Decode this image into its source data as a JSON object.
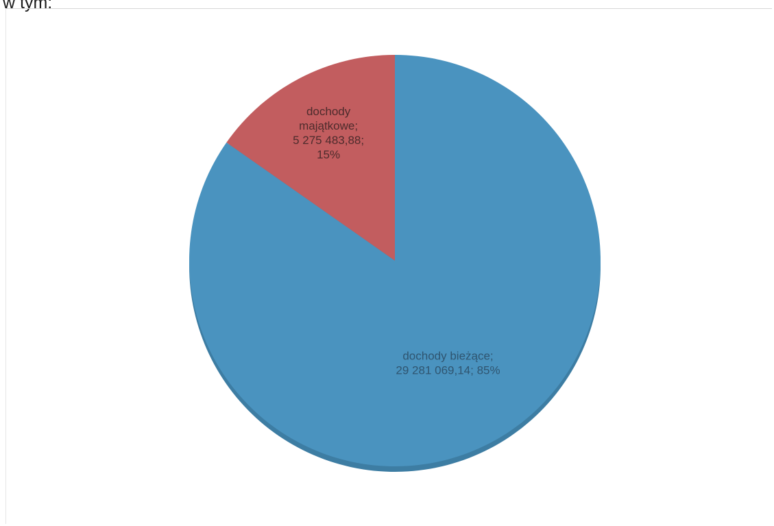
{
  "heading": "w tym:",
  "chart_data": {
    "type": "pie",
    "title": "",
    "slices": [
      {
        "key": "biezace",
        "lines": [
          "dochody bieżące;",
          "29 281 069,14; 85%"
        ],
        "value": 29281069.14,
        "percent": 85,
        "color": "#4a93bf",
        "side_color": "#3d7da3",
        "label_color": "#2f5570"
      },
      {
        "key": "majatkowe",
        "lines": [
          "dochody",
          "majątkowe;",
          "5 275 483,88;",
          "15%"
        ],
        "value": 5275483.88,
        "percent": 15,
        "color": "#c25d5f",
        "side_color": "#a84c4e",
        "label_color": "#4d2b2c"
      }
    ],
    "legend": "none",
    "start": "12 o'clock, clockwise"
  }
}
